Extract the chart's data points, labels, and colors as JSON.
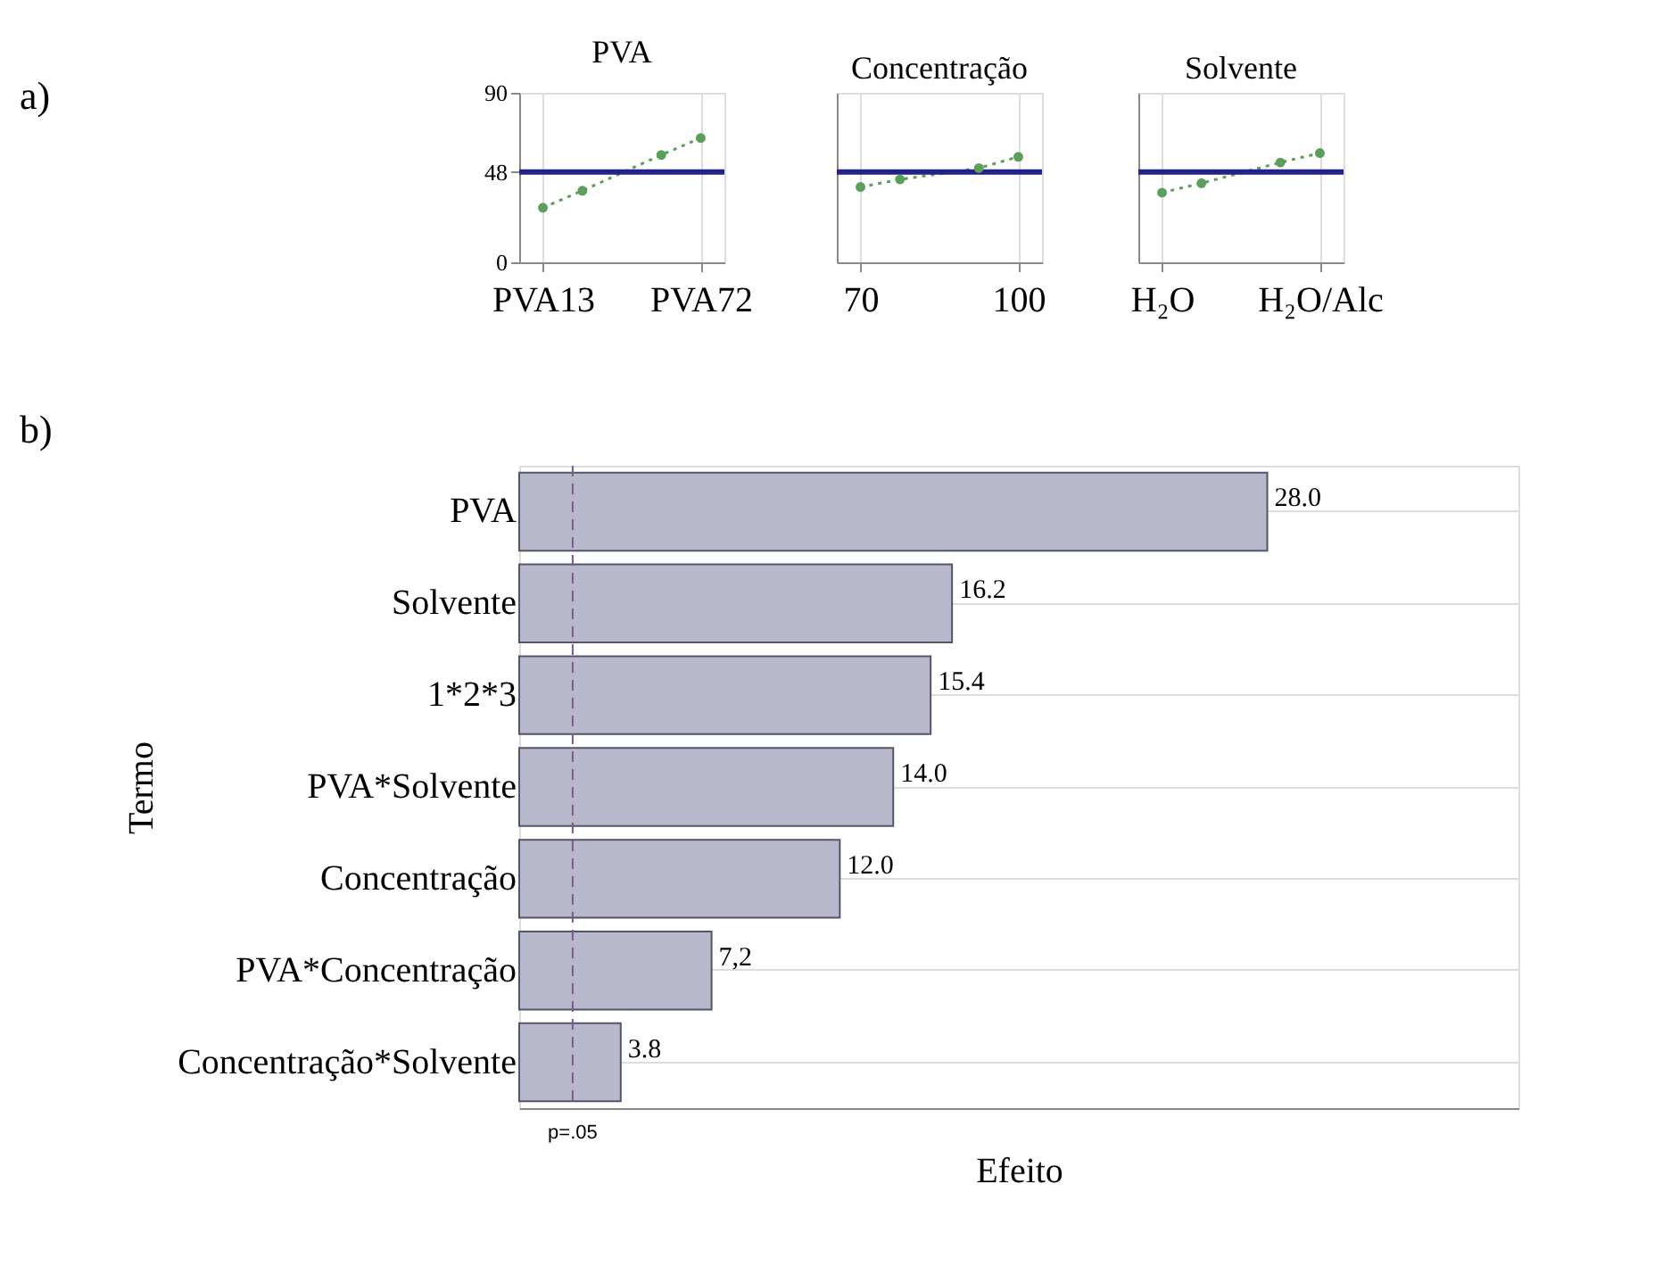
{
  "chart_data": [
    {
      "type": "line",
      "title": "PVA",
      "annotations": [
        "a)"
      ],
      "categories": [
        "PVA13",
        null,
        null,
        null,
        "PVA72"
      ],
      "series": [
        {
          "color": "#5aa05a",
          "values": [
            29,
            38,
            null,
            57,
            66
          ]
        }
      ],
      "ylim": [
        0,
        90
      ],
      "yticks": [
        0,
        48,
        90
      ],
      "grid": true,
      "marker": "circle",
      "line_style": "dotted",
      "ref_lines": [
        {
          "axis": "y",
          "value": 48,
          "color": "#22228a"
        }
      ]
    },
    {
      "type": "line",
      "title": "Concentração",
      "categories": [
        "70",
        null,
        null,
        null,
        "100"
      ],
      "series": [
        {
          "color": "#5aa05a",
          "values": [
            40,
            44,
            null,
            50,
            56
          ]
        }
      ],
      "ylim": [
        0,
        90
      ],
      "tick_labels": "x",
      "grid": true,
      "marker": "circle",
      "line_style": "dotted",
      "ref_lines": [
        {
          "axis": "y",
          "value": 48,
          "color": "#22228a"
        }
      ]
    },
    {
      "type": "line",
      "title": "Solvente",
      "categories": [
        "H₂O",
        null,
        null,
        null,
        "H₂O/Alc"
      ],
      "series": [
        {
          "color": "#5aa05a",
          "values": [
            37,
            42,
            null,
            53,
            58
          ]
        }
      ],
      "ylim": [
        0,
        90
      ],
      "tick_labels": "x",
      "grid": true,
      "marker": "circle",
      "line_style": "dotted",
      "ref_lines": [
        {
          "axis": "y",
          "value": 48,
          "color": "#22228a"
        }
      ]
    },
    {
      "type": "bar",
      "orientation": "horizontal",
      "annotations": [
        "b)"
      ],
      "xlabel": "Efeito",
      "ylabel": "Termo",
      "categories": [
        "PVA",
        "Solvente",
        "1*2*3",
        "PVA*Solvente",
        "Concentração",
        "PVA*Concentração",
        "Concentração*Solvente"
      ],
      "values": [
        28.0,
        16.2,
        15.4,
        14.0,
        12.0,
        7.2,
        3.8
      ],
      "color": "#b8b8cc",
      "value_labels": [
        "28.0",
        "16.2",
        "15.4",
        "14.0",
        "12.0",
        "7,2",
        "3.8"
      ],
      "xlim": [
        0,
        37.4
      ],
      "tick_labels": "y",
      "grid": "y",
      "ref_lines": [
        {
          "axis": "x",
          "value": 2.0,
          "label": "p=.05",
          "color": "#7a5a8a",
          "line_style": "dashed"
        }
      ]
    }
  ]
}
